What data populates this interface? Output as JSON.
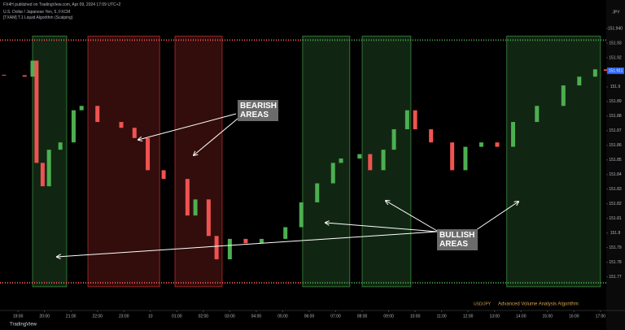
{
  "header": {
    "publisher": "FX4H published on TradingView.com, Apr 09, 2024 17:09 UTC+2",
    "symbol": "U.S. Dollar / Japanese Yen, 5, FXCM",
    "indicator": "[TXAM] T.1 Liquid Algorithm (Scalping)",
    "currency": "JPY",
    "brand": "TradingView",
    "footer_symbol": "USD/JPY",
    "footer_indicator": "Advanced Volume Analysis Algorithm"
  },
  "chart_data": {
    "type": "candlestick",
    "x": [
      -0.53,
      0.25,
      0.55,
      0.7,
      0.93,
      1.17,
      1.6,
      2.1,
      2.4,
      3.0,
      3.9,
      4.4,
      4.9,
      5.5,
      6.4,
      6.7,
      7.2,
      7.5,
      8.0,
      8.6,
      9.2,
      10.1,
      10.7,
      11.3,
      11.9,
      12.2,
      12.9,
      13.3,
      13.8,
      14.2,
      14.7,
      15.0,
      15.6,
      16.4,
      16.9,
      17.5,
      18.1,
      18.7,
      19.6,
      20.6,
      21.2,
      21.8,
      22.2
    ],
    "values": [
      151.908,
      151.907,
      151.918,
      151.848,
      151.832,
      151.857,
      151.862,
      151.884,
      151.887,
      151.876,
      151.872,
      151.865,
      151.843,
      151.837,
      151.812,
      151.823,
      151.798,
      151.782,
      151.796,
      151.793,
      151.796,
      151.804,
      151.821,
      151.834,
      151.848,
      151.851,
      151.854,
      151.843,
      151.857,
      151.871,
      151.884,
      151.871,
      151.862,
      151.843,
      151.859,
      151.862,
      151.859,
      151.876,
      151.887,
      151.901,
      151.907,
      151.912,
      151.911
    ],
    "up_color": "#4caf50",
    "down_color": "#ef5350",
    "xlim": [
      -0.68,
      22.22
    ],
    "xticks": [
      {
        "value": 0,
        "label": "19:00"
      },
      {
        "value": 1,
        "label": "20:00"
      },
      {
        "value": 2,
        "label": "21:00"
      },
      {
        "value": 3,
        "label": "22:00"
      },
      {
        "value": 4,
        "label": "23:00"
      },
      {
        "value": 5,
        "label": "10"
      },
      {
        "value": 6,
        "label": "01:00"
      },
      {
        "value": 7,
        "label": "02:00"
      },
      {
        "value": 8,
        "label": "03:00"
      },
      {
        "value": 9,
        "label": "04:00"
      },
      {
        "value": 10,
        "label": "05:00"
      },
      {
        "value": 11,
        "label": "06:00"
      },
      {
        "value": 12,
        "label": "07:00"
      },
      {
        "value": 13,
        "label": "08:00"
      },
      {
        "value": 14,
        "label": "09:00"
      },
      {
        "value": 15,
        "label": "10:00"
      },
      {
        "value": 16,
        "label": "11:00"
      },
      {
        "value": 17,
        "label": "12:00"
      },
      {
        "value": 18,
        "label": "13:00"
      },
      {
        "value": 19,
        "label": "14:00"
      },
      {
        "value": 20,
        "label": "15:00"
      },
      {
        "value": 21,
        "label": "16:00"
      },
      {
        "value": 22,
        "label": "17:00"
      }
    ],
    "ylim": [
      151.747,
      151.955
    ],
    "yticks": [
      {
        "value": 151.94,
        "label": "151.940"
      },
      151.93,
      151.92,
      151.91,
      151.9,
      151.89,
      151.88,
      151.87,
      151.86,
      151.85,
      151.84,
      151.83,
      151.82,
      151.81,
      151.8,
      151.79,
      151.78,
      151.77
    ],
    "zones": [
      {
        "color": "#4caf50",
        "x": [
          0.55,
          1.84
        ]
      },
      {
        "color": "#e53935",
        "x": [
          2.64,
          5.35
        ]
      },
      {
        "color": "#e53935",
        "x": [
          5.93,
          7.71
        ]
      },
      {
        "color": "#4caf50",
        "x": [
          10.75,
          12.53
        ]
      },
      {
        "color": "#4caf50",
        "x": [
          13.0,
          14.84
        ]
      },
      {
        "color": "#4caf50",
        "x": [
          18.46,
          22.0
        ]
      }
    ],
    "levels": [
      151.932,
      151.766
    ],
    "annotations": [
      "BEARISH AREAS",
      "BULLISH AREAS"
    ]
  }
}
